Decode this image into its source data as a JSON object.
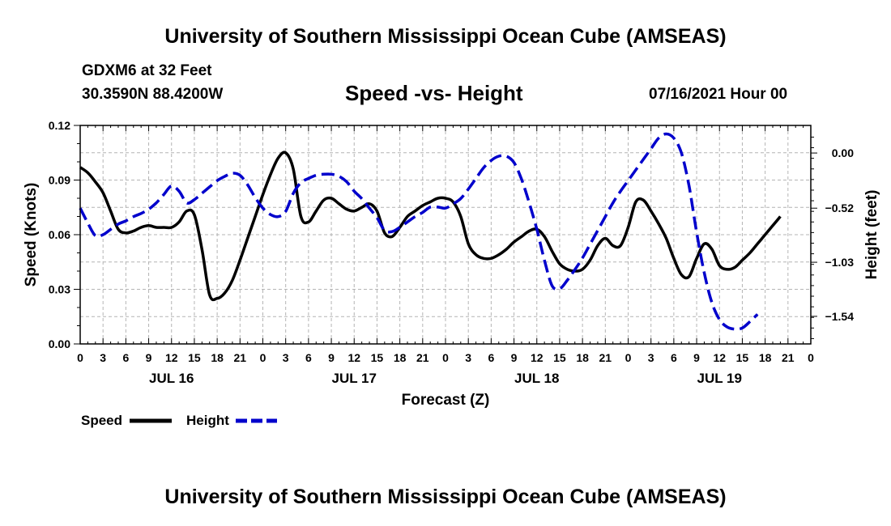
{
  "header": {
    "title": "University of Southern Mississippi Ocean Cube (AMSEAS)",
    "station": "GDXM6 at 32 Feet",
    "coordinates": "30.3590N  88.4200W",
    "datetime": "07/16/2021 Hour 00"
  },
  "footer": {
    "title": "University of Southern Mississippi Ocean Cube (AMSEAS)"
  },
  "chart_data": {
    "type": "line",
    "title": "Speed -vs- Height",
    "xlabel": "Forecast (Z)",
    "ylabel_left": "Speed (Knots)",
    "ylabel_right": "Height (feet)",
    "x_range": [
      0,
      96
    ],
    "y_left_range": [
      0,
      0.12
    ],
    "y_right_range": [
      -1.8,
      0.26
    ],
    "y_left_ticks": [
      "0.00",
      "0.03",
      "0.06",
      "0.09",
      "0.12"
    ],
    "y_right_ticks": [
      {
        "value": 0.0,
        "label": "0.00"
      },
      {
        "value": -0.52,
        "label": "−0.52"
      },
      {
        "value": -1.03,
        "label": "−1.03"
      },
      {
        "value": -1.54,
        "label": "−1.54"
      }
    ],
    "x_tick_labels": [
      "0",
      "3",
      "6",
      "9",
      "12",
      "15",
      "18",
      "21",
      "0",
      "3",
      "6",
      "9",
      "12",
      "15",
      "18",
      "21",
      "0",
      "3",
      "6",
      "9",
      "12",
      "15",
      "18",
      "21",
      "0",
      "3",
      "6",
      "9",
      "12",
      "15",
      "18",
      "21",
      "0"
    ],
    "day_labels": [
      {
        "x": 12,
        "label": "JUL 16"
      },
      {
        "x": 36,
        "label": "JUL 17"
      },
      {
        "x": 60,
        "label": "JUL 18"
      },
      {
        "x": 84,
        "label": "JUL 19"
      }
    ],
    "grid": true,
    "legend": [
      {
        "name": "Speed",
        "color": "#000000",
        "dash": false
      },
      {
        "name": "Height",
        "color": "#0000cc",
        "dash": true
      }
    ],
    "series": [
      {
        "name": "Speed",
        "axis": "left",
        "color": "#000000",
        "points": [
          [
            0,
            0.097
          ],
          [
            1,
            0.094
          ],
          [
            2,
            0.089
          ],
          [
            3,
            0.083
          ],
          [
            4,
            0.073
          ],
          [
            5,
            0.063
          ],
          [
            6,
            0.061
          ],
          [
            7,
            0.062
          ],
          [
            8,
            0.064
          ],
          [
            9,
            0.065
          ],
          [
            10,
            0.064
          ],
          [
            11,
            0.064
          ],
          [
            12,
            0.064
          ],
          [
            13,
            0.067
          ],
          [
            14,
            0.073
          ],
          [
            15,
            0.071
          ],
          [
            16,
            0.052
          ],
          [
            17,
            0.027
          ],
          [
            18,
            0.025
          ],
          [
            19,
            0.028
          ],
          [
            20,
            0.035
          ],
          [
            21,
            0.046
          ],
          [
            22,
            0.058
          ],
          [
            23,
            0.07
          ],
          [
            24,
            0.082
          ],
          [
            25,
            0.093
          ],
          [
            26,
            0.102
          ],
          [
            27,
            0.105
          ],
          [
            28,
            0.096
          ],
          [
            29,
            0.07
          ],
          [
            30,
            0.067
          ],
          [
            31,
            0.073
          ],
          [
            32,
            0.079
          ],
          [
            33,
            0.08
          ],
          [
            34,
            0.077
          ],
          [
            35,
            0.074
          ],
          [
            36,
            0.073
          ],
          [
            37,
            0.075
          ],
          [
            38,
            0.077
          ],
          [
            39,
            0.073
          ],
          [
            40,
            0.061
          ],
          [
            41,
            0.059
          ],
          [
            42,
            0.064
          ],
          [
            43,
            0.07
          ],
          [
            44,
            0.073
          ],
          [
            45,
            0.076
          ],
          [
            46,
            0.078
          ],
          [
            47,
            0.08
          ],
          [
            48,
            0.08
          ],
          [
            49,
            0.078
          ],
          [
            50,
            0.07
          ],
          [
            51,
            0.055
          ],
          [
            52,
            0.049
          ],
          [
            53,
            0.047
          ],
          [
            54,
            0.047
          ],
          [
            55,
            0.049
          ],
          [
            56,
            0.052
          ],
          [
            57,
            0.056
          ],
          [
            58,
            0.059
          ],
          [
            59,
            0.062
          ],
          [
            60,
            0.063
          ],
          [
            61,
            0.059
          ],
          [
            62,
            0.051
          ],
          [
            63,
            0.044
          ],
          [
            64,
            0.041
          ],
          [
            65,
            0.04
          ],
          [
            66,
            0.041
          ],
          [
            67,
            0.046
          ],
          [
            68,
            0.054
          ],
          [
            69,
            0.058
          ],
          [
            70,
            0.054
          ],
          [
            71,
            0.054
          ],
          [
            72,
            0.064
          ],
          [
            73,
            0.078
          ],
          [
            74,
            0.079
          ],
          [
            75,
            0.073
          ],
          [
            76,
            0.066
          ],
          [
            77,
            0.058
          ],
          [
            78,
            0.047
          ],
          [
            79,
            0.038
          ],
          [
            80,
            0.037
          ],
          [
            81,
            0.047
          ],
          [
            82,
            0.055
          ],
          [
            83,
            0.052
          ],
          [
            84,
            0.043
          ],
          [
            85,
            0.041
          ],
          [
            86,
            0.042
          ],
          [
            87,
            0.046
          ],
          [
            88,
            0.05
          ],
          [
            89,
            0.055
          ],
          [
            90,
            0.06
          ],
          [
            91,
            0.065
          ],
          [
            92,
            0.07
          ]
        ]
      },
      {
        "name": "Height",
        "axis": "right",
        "color": "#0000cc",
        "points": [
          [
            0,
            -0.52
          ],
          [
            1,
            -0.66
          ],
          [
            2,
            -0.78
          ],
          [
            3,
            -0.77
          ],
          [
            4,
            -0.72
          ],
          [
            5,
            -0.67
          ],
          [
            6,
            -0.64
          ],
          [
            7,
            -0.6
          ],
          [
            8,
            -0.57
          ],
          [
            9,
            -0.53
          ],
          [
            10,
            -0.47
          ],
          [
            11,
            -0.39
          ],
          [
            12,
            -0.31
          ],
          [
            13,
            -0.36
          ],
          [
            14,
            -0.47
          ],
          [
            15,
            -0.44
          ],
          [
            16,
            -0.38
          ],
          [
            17,
            -0.32
          ],
          [
            18,
            -0.26
          ],
          [
            19,
            -0.22
          ],
          [
            20,
            -0.19
          ],
          [
            21,
            -0.21
          ],
          [
            22,
            -0.3
          ],
          [
            23,
            -0.42
          ],
          [
            24,
            -0.52
          ],
          [
            25,
            -0.58
          ],
          [
            26,
            -0.6
          ],
          [
            27,
            -0.55
          ],
          [
            28,
            -0.38
          ],
          [
            29,
            -0.28
          ],
          [
            30,
            -0.24
          ],
          [
            31,
            -0.21
          ],
          [
            32,
            -0.2
          ],
          [
            33,
            -0.2
          ],
          [
            34,
            -0.22
          ],
          [
            35,
            -0.27
          ],
          [
            36,
            -0.36
          ],
          [
            37,
            -0.43
          ],
          [
            38,
            -0.52
          ],
          [
            39,
            -0.61
          ],
          [
            40,
            -0.73
          ],
          [
            41,
            -0.74
          ],
          [
            42,
            -0.7
          ],
          [
            43,
            -0.65
          ],
          [
            44,
            -0.6
          ],
          [
            45,
            -0.56
          ],
          [
            46,
            -0.51
          ],
          [
            47,
            -0.51
          ],
          [
            48,
            -0.52
          ],
          [
            49,
            -0.48
          ],
          [
            50,
            -0.43
          ],
          [
            51,
            -0.34
          ],
          [
            52,
            -0.24
          ],
          [
            53,
            -0.14
          ],
          [
            54,
            -0.07
          ],
          [
            55,
            -0.03
          ],
          [
            56,
            -0.03
          ],
          [
            57,
            -0.09
          ],
          [
            58,
            -0.25
          ],
          [
            59,
            -0.47
          ],
          [
            60,
            -0.72
          ],
          [
            61,
            -1.01
          ],
          [
            62,
            -1.25
          ],
          [
            63,
            -1.28
          ],
          [
            64,
            -1.2
          ],
          [
            65,
            -1.1
          ],
          [
            66,
            -0.99
          ],
          [
            67,
            -0.86
          ],
          [
            68,
            -0.73
          ],
          [
            69,
            -0.6
          ],
          [
            70,
            -0.47
          ],
          [
            71,
            -0.36
          ],
          [
            72,
            -0.26
          ],
          [
            73,
            -0.16
          ],
          [
            74,
            -0.06
          ],
          [
            75,
            0.04
          ],
          [
            76,
            0.14
          ],
          [
            77,
            0.18
          ],
          [
            78,
            0.14
          ],
          [
            79,
            0.0
          ],
          [
            80,
            -0.31
          ],
          [
            81,
            -0.75
          ],
          [
            82,
            -1.13
          ],
          [
            83,
            -1.41
          ],
          [
            84,
            -1.57
          ],
          [
            85,
            -1.64
          ],
          [
            86,
            -1.66
          ],
          [
            87,
            -1.65
          ],
          [
            88,
            -1.59
          ],
          [
            89,
            -1.52
          ]
        ]
      }
    ]
  }
}
